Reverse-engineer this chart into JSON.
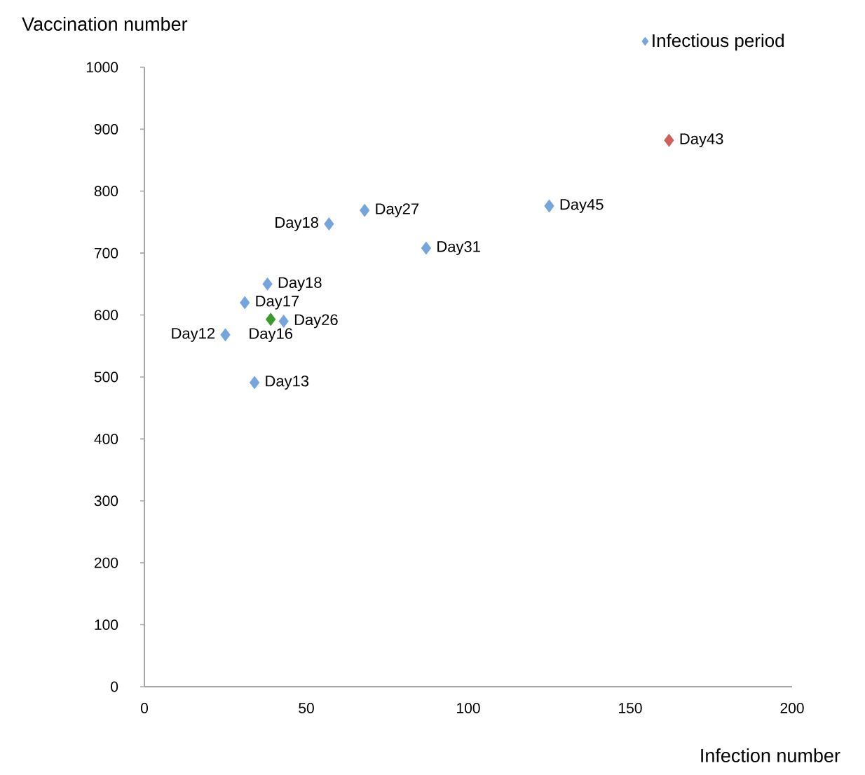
{
  "chart_data": {
    "type": "scatter",
    "xlabel": "Infection number",
    "ylabel": "Vaccination number",
    "xlim": [
      0,
      200
    ],
    "ylim": [
      0,
      1000
    ],
    "xticks": [
      0,
      50,
      100,
      150,
      200
    ],
    "yticks": [
      0,
      100,
      200,
      300,
      400,
      500,
      600,
      700,
      800,
      900,
      1000
    ],
    "grid": false,
    "legend": "top right",
    "marker": "diamond",
    "series": [
      {
        "name": "Infectious period",
        "color": "#76a5dc",
        "x": [
          162,
          125,
          87,
          68,
          57,
          31,
          38,
          39,
          43,
          25,
          34
        ],
        "values": [
          882,
          776,
          708,
          769,
          747,
          620,
          650,
          593,
          590,
          568,
          491
        ],
        "colors": [
          "#d0605a",
          "#76a5dc",
          "#76a5dc",
          "#76a5dc",
          "#76a5dc",
          "#76a5dc",
          "#76a5dc",
          "#3a9a2a",
          "#76a5dc",
          "#76a5dc",
          "#76a5dc"
        ]
      }
    ],
    "annotations": [
      {
        "text": "Day43",
        "x": 162,
        "y": 882
      },
      {
        "text": "Day45",
        "x": 125,
        "y": 776
      },
      {
        "text": "Day31",
        "x": 87,
        "y": 708
      },
      {
        "text": "Day27",
        "x": 68,
        "y": 769
      },
      {
        "text": "Day18",
        "x": 57,
        "y": 747
      },
      {
        "text": "Day17",
        "x": 31,
        "y": 620
      },
      {
        "text": "Day18",
        "x": 38,
        "y": 650
      },
      {
        "text": "Day16",
        "x": 39,
        "y": 593
      },
      {
        "text": "Day26",
        "x": 43,
        "y": 590
      },
      {
        "text": "Day12",
        "x": 25,
        "y": 568
      },
      {
        "text": "Day13",
        "x": 34,
        "y": 491
      }
    ]
  }
}
